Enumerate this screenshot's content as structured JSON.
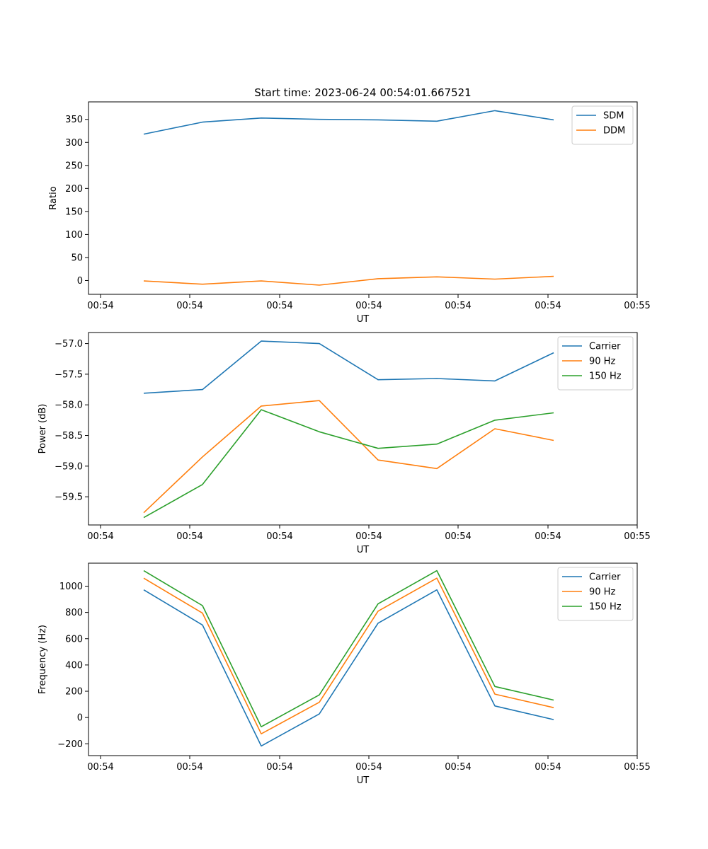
{
  "chart_data": [
    {
      "type": "line",
      "title": "Start time: 2023-06-24 00:54:01.667521",
      "xlabel": "UT",
      "ylabel": "Ratio",
      "x_tick_labels": [
        "00:54",
        "00:54",
        "00:54",
        "00:54",
        "00:54",
        "00:54",
        "00:55"
      ],
      "y_ticks": [
        "0",
        "50",
        "100",
        "150",
        "200",
        "250",
        "300",
        "350"
      ],
      "ylim": [
        -30,
        388
      ],
      "legend": "upper right",
      "series": [
        {
          "name": "SDM",
          "color": "#1f77b4",
          "values": [
            318,
            344,
            353,
            350,
            349,
            346,
            369,
            349
          ]
        },
        {
          "name": "DDM",
          "color": "#ff7f0e",
          "values": [
            -1,
            -8,
            -1,
            -10,
            4,
            8,
            3,
            9
          ]
        }
      ]
    },
    {
      "type": "line",
      "title": "",
      "xlabel": "UT",
      "ylabel": "Power (dB)",
      "x_tick_labels": [
        "00:54",
        "00:54",
        "00:54",
        "00:54",
        "00:54",
        "00:54",
        "00:55"
      ],
      "y_ticks": [
        "−59.5",
        "−59.0",
        "−58.5",
        "−58.0",
        "−57.5",
        "−57.0"
      ],
      "ylim": [
        -59.96,
        -56.82
      ],
      "legend": "upper right",
      "series": [
        {
          "name": "Carrier",
          "color": "#1f77b4",
          "values": [
            -57.81,
            -57.75,
            -56.96,
            -57.0,
            -57.59,
            -57.57,
            -57.61,
            -57.15
          ]
        },
        {
          "name": "90 Hz",
          "color": "#ff7f0e",
          "values": [
            -59.76,
            -58.85,
            -58.02,
            -57.93,
            -58.9,
            -59.04,
            -58.39,
            -58.58
          ]
        },
        {
          "name": "150 Hz",
          "color": "#2ca02c",
          "values": [
            -59.84,
            -59.3,
            -58.08,
            -58.44,
            -58.71,
            -58.64,
            -58.25,
            -58.13
          ]
        }
      ]
    },
    {
      "type": "line",
      "title": "",
      "xlabel": "UT",
      "ylabel": "Frequency (Hz)",
      "x_tick_labels": [
        "00:54",
        "00:54",
        "00:54",
        "00:54",
        "00:54",
        "00:54",
        "00:55"
      ],
      "y_ticks": [
        "−200",
        "0",
        "200",
        "400",
        "600",
        "800",
        "1000"
      ],
      "ylim": [
        -290,
        1175
      ],
      "legend": "upper right",
      "series": [
        {
          "name": "Carrier",
          "color": "#1f77b4",
          "values": [
            972,
            704,
            -217,
            27,
            718,
            972,
            88,
            -16
          ]
        },
        {
          "name": "90 Hz",
          "color": "#ff7f0e",
          "values": [
            1061,
            795,
            -124,
            116,
            810,
            1061,
            178,
            75
          ]
        },
        {
          "name": "150 Hz",
          "color": "#2ca02c",
          "values": [
            1118,
            852,
            -70,
            172,
            866,
            1118,
            236,
            133
          ]
        }
      ]
    }
  ]
}
